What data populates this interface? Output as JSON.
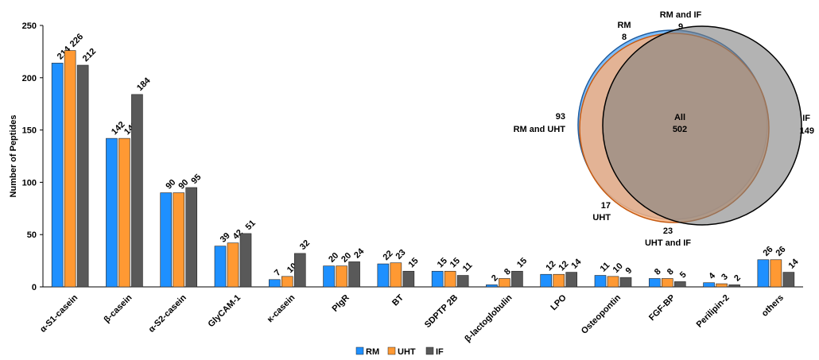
{
  "chart_data": [
    {
      "type": "bar",
      "ylabel": "Number of Peptides",
      "ylim": [
        0,
        250
      ],
      "yticks": [
        0,
        50,
        100,
        150,
        200,
        250
      ],
      "grid": false,
      "legend_position": "bottom",
      "categories": [
        "α-S1-casein",
        "β-casein",
        "α-S2-casein",
        "GlyCAM-1",
        "κ-casein",
        "PIgR",
        "BT",
        "SDPTP 2B",
        "β-lactoglobulin",
        "LPO",
        "Osteopontin",
        "FGF-BP",
        "Perilipin-2",
        "others"
      ],
      "series": [
        {
          "name": "RM",
          "color": "#1e90ff",
          "values": [
            214,
            142,
            90,
            39,
            7,
            20,
            22,
            15,
            2,
            12,
            11,
            8,
            4,
            26
          ]
        },
        {
          "name": "UHT",
          "color": "#ff9933",
          "values": [
            226,
            142,
            90,
            42,
            10,
            20,
            23,
            15,
            8,
            12,
            10,
            8,
            3,
            26
          ]
        },
        {
          "name": "IF",
          "color": "#595959",
          "values": [
            212,
            184,
            95,
            51,
            32,
            24,
            15,
            11,
            15,
            14,
            9,
            5,
            2,
            14
          ]
        }
      ]
    },
    {
      "type": "venn",
      "sets": [
        {
          "name": "RM",
          "color": "#66b3ff"
        },
        {
          "name": "UHT",
          "color": "#f4b183"
        },
        {
          "name": "IF",
          "color": "#a6a6a6"
        }
      ],
      "regions": [
        {
          "label": "RM",
          "value": "8"
        },
        {
          "label": "RM and IF",
          "value": "9"
        },
        {
          "label": "RM and UHT",
          "value": "93"
        },
        {
          "label": "All",
          "value": "502"
        },
        {
          "label": "IF",
          "value": "149"
        },
        {
          "label": "UHT",
          "value": "17"
        },
        {
          "label": "UHT and IF",
          "value": "23"
        }
      ]
    }
  ]
}
